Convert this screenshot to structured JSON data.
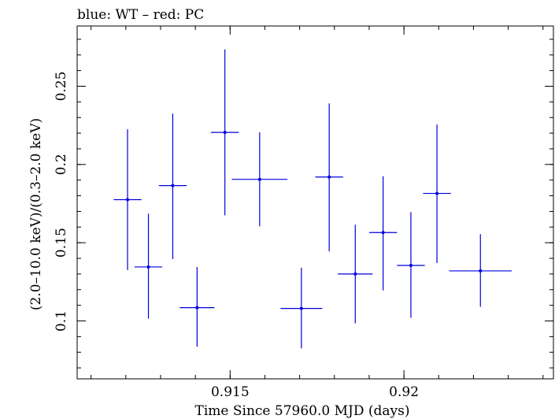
{
  "chart_data": {
    "type": "scatter",
    "title": "blue: WT – red: PC",
    "xlabel": "Time Since 57960.0 MJD (days)",
    "ylabel": "(2.0–10.0 keV)/(0.3–2.0 keV)",
    "xlim": [
      0.9106,
      0.9243
    ],
    "ylim": [
      0.063,
      0.2885
    ],
    "x_ticks": [
      {
        "value": 0.915,
        "label": "0.915"
      },
      {
        "value": 0.92,
        "label": "0.92"
      }
    ],
    "y_ticks": [
      {
        "value": 0.1,
        "label": "0.1"
      },
      {
        "value": 0.15,
        "label": "0.15"
      },
      {
        "value": 0.2,
        "label": "0.2"
      },
      {
        "value": 0.25,
        "label": "0.25"
      }
    ],
    "x_minor_step": 0.001,
    "y_minor_step": 0.01,
    "grid": false,
    "series": [
      {
        "color": "#0000dd",
        "points": [
          {
            "x": 0.91205,
            "y": 0.1775,
            "xerr": 0.0004,
            "ylo": 0.1325,
            "yhi": 0.2225
          },
          {
            "x": 0.91265,
            "y": 0.1345,
            "xerr": 0.0004,
            "ylo": 0.1015,
            "yhi": 0.1685
          },
          {
            "x": 0.91335,
            "y": 0.1865,
            "xerr": 0.0004,
            "ylo": 0.1395,
            "yhi": 0.2325
          },
          {
            "x": 0.91405,
            "y": 0.1085,
            "xerr": 0.0005,
            "ylo": 0.0835,
            "yhi": 0.1345
          },
          {
            "x": 0.91485,
            "y": 0.2205,
            "xerr": 0.0004,
            "ylo": 0.1675,
            "yhi": 0.2735
          },
          {
            "x": 0.91585,
            "y": 0.1905,
            "xerr": 0.0008,
            "ylo": 0.1605,
            "yhi": 0.2205
          },
          {
            "x": 0.91705,
            "y": 0.108,
            "xerr": 0.0006,
            "ylo": 0.0825,
            "yhi": 0.134
          },
          {
            "x": 0.91785,
            "y": 0.192,
            "xerr": 0.0004,
            "ylo": 0.1445,
            "yhi": 0.239
          },
          {
            "x": 0.9186,
            "y": 0.13,
            "xerr": 0.0005,
            "ylo": 0.0985,
            "yhi": 0.1615
          },
          {
            "x": 0.9194,
            "y": 0.1565,
            "xerr": 0.0004,
            "ylo": 0.1195,
            "yhi": 0.1925
          },
          {
            "x": 0.9202,
            "y": 0.1355,
            "xerr": 0.0004,
            "ylo": 0.102,
            "yhi": 0.1695
          },
          {
            "x": 0.92095,
            "y": 0.1815,
            "xerr": 0.0004,
            "ylo": 0.137,
            "yhi": 0.2255
          },
          {
            "x": 0.9222,
            "y": 0.132,
            "xerr": 0.0009,
            "ylo": 0.109,
            "yhi": 0.1555
          }
        ]
      }
    ]
  }
}
